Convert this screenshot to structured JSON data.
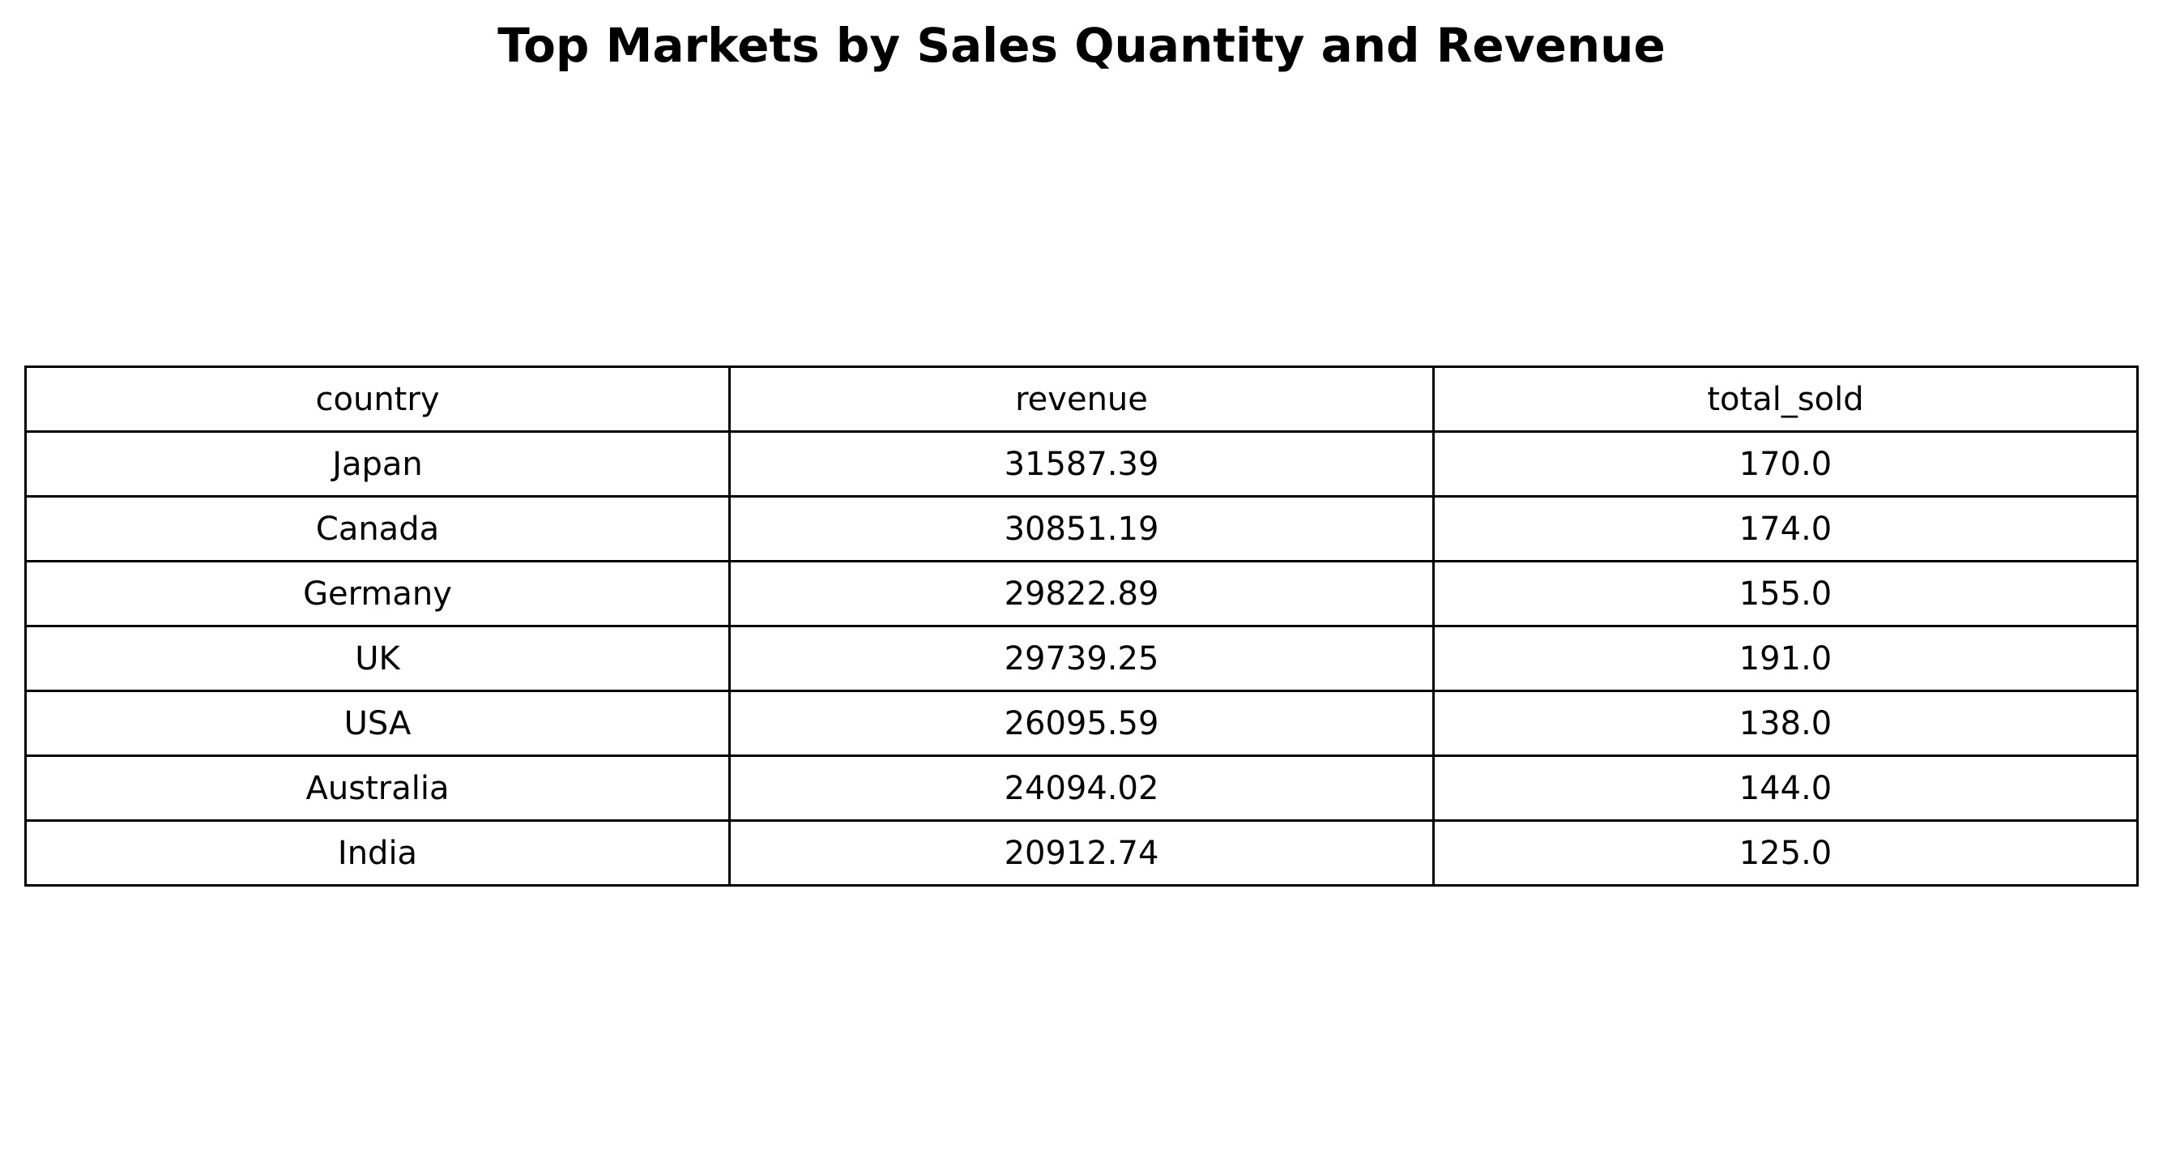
{
  "chart_data": {
    "type": "table",
    "title": "Top Markets by Sales Quantity and Revenue",
    "columns": [
      "country",
      "revenue",
      "total_sold"
    ],
    "rows": [
      [
        "Japan",
        "31587.39",
        "170.0"
      ],
      [
        "Canada",
        "30851.19",
        "174.0"
      ],
      [
        "Germany",
        "29822.89",
        "155.0"
      ],
      [
        "UK",
        "29739.25",
        "191.0"
      ],
      [
        "USA",
        "26095.59",
        "138.0"
      ],
      [
        "Australia",
        "24094.02",
        "144.0"
      ],
      [
        "India",
        "20912.74",
        "125.0"
      ]
    ]
  }
}
